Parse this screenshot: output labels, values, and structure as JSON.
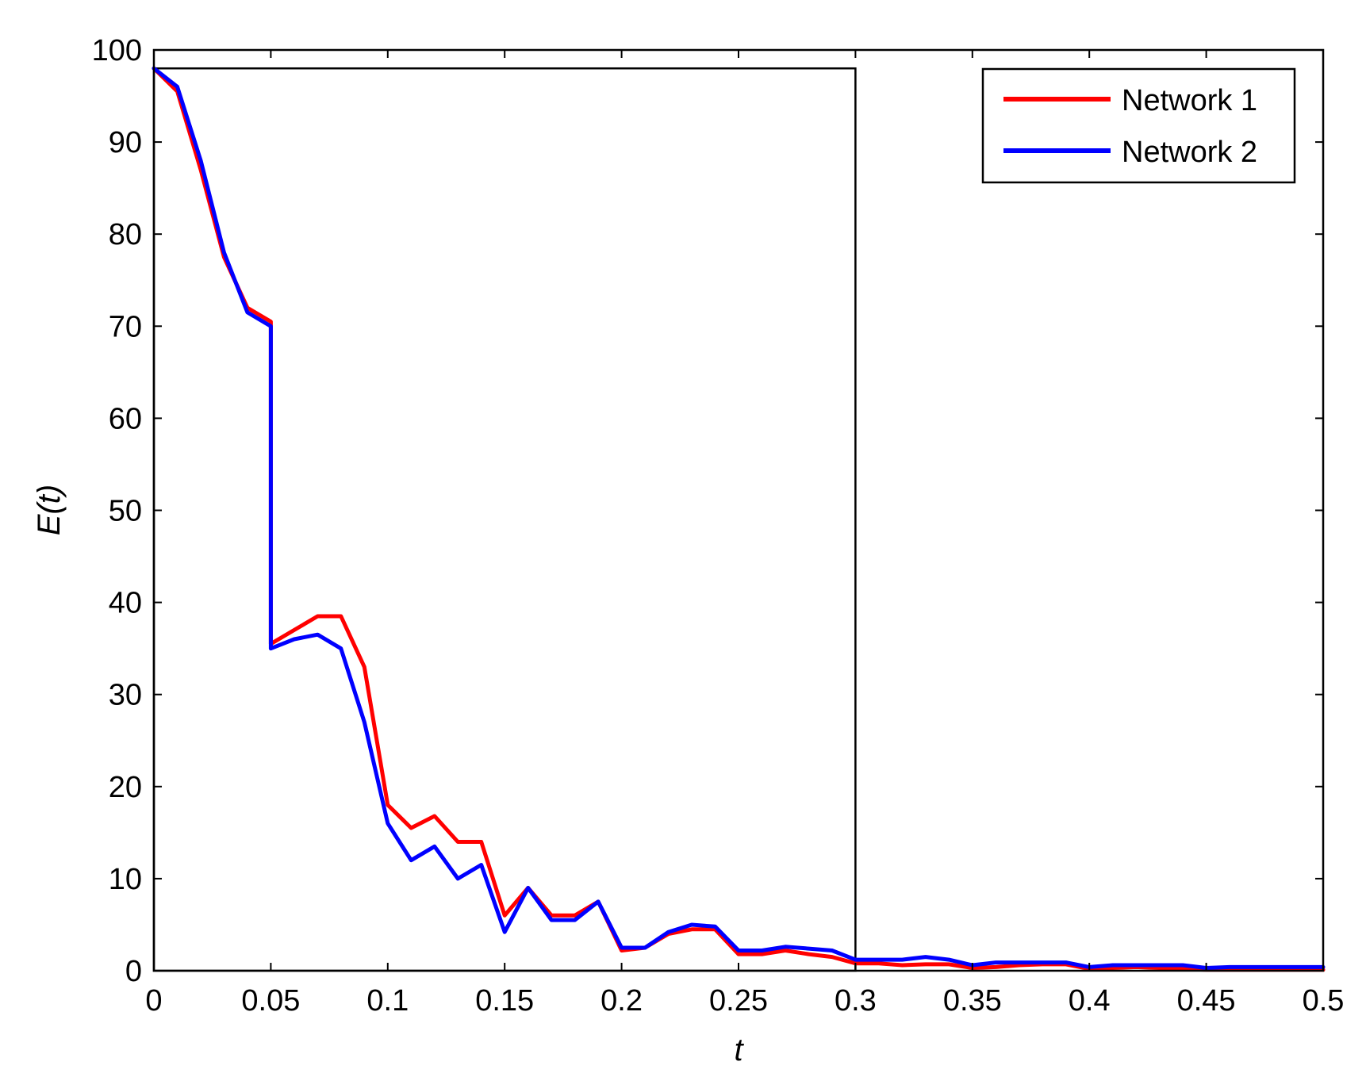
{
  "chart_data": {
    "type": "line",
    "xlabel": "t",
    "ylabel": "E(t)",
    "xlim": [
      0,
      0.5
    ],
    "ylim": [
      0,
      100
    ],
    "xticks": [
      0,
      0.05,
      0.1,
      0.15,
      0.2,
      0.25,
      0.3,
      0.35,
      0.4,
      0.45,
      0.5
    ],
    "xtick_labels": [
      "0",
      "0.05",
      "0.1",
      "0.15",
      "0.2",
      "0.25",
      "0.3",
      "0.35",
      "0.4",
      "0.45",
      "0.5"
    ],
    "yticks": [
      0,
      10,
      20,
      30,
      40,
      50,
      60,
      70,
      80,
      90,
      100
    ],
    "ytick_labels": [
      "0",
      "10",
      "20",
      "30",
      "40",
      "50",
      "60",
      "70",
      "80",
      "90",
      "100"
    ],
    "grid": false,
    "legend_position": "top-right",
    "colors": {
      "Network 1": "#ff0000",
      "Network 2": "#0000ff",
      "axes": "#000000"
    },
    "reference_box": {
      "x": [
        0,
        0.3
      ],
      "y": [
        0,
        98
      ]
    },
    "series": [
      {
        "name": "Network 1",
        "x": [
          0,
          0.01,
          0.02,
          0.03,
          0.04,
          0.05,
          0.05,
          0.06,
          0.07,
          0.08,
          0.09,
          0.1,
          0.11,
          0.12,
          0.13,
          0.14,
          0.15,
          0.16,
          0.17,
          0.18,
          0.19,
          0.2,
          0.21,
          0.22,
          0.23,
          0.24,
          0.25,
          0.26,
          0.27,
          0.28,
          0.29,
          0.3,
          0.31,
          0.32,
          0.33,
          0.34,
          0.35,
          0.36,
          0.37,
          0.38,
          0.39,
          0.4,
          0.41,
          0.42,
          0.43,
          0.44,
          0.45,
          0.46,
          0.47,
          0.48,
          0.49,
          0.5
        ],
        "y": [
          98,
          95.5,
          87,
          77.5,
          72,
          70.5,
          35.5,
          37,
          38.5,
          38.5,
          33,
          18,
          15.5,
          16.8,
          14,
          14,
          6,
          9,
          6,
          6,
          7.5,
          2.2,
          2.5,
          4,
          4.5,
          4.5,
          1.8,
          1.8,
          2.2,
          1.8,
          1.5,
          0.8,
          0.8,
          0.6,
          0.7,
          0.7,
          0.3,
          0.4,
          0.6,
          0.7,
          0.7,
          0.2,
          0.3,
          0.4,
          0.3,
          0.2,
          0.1,
          0.1,
          0.1,
          0.1,
          0.1,
          0.1
        ]
      },
      {
        "name": "Network 2",
        "x": [
          0,
          0.01,
          0.02,
          0.03,
          0.04,
          0.05,
          0.05,
          0.06,
          0.07,
          0.08,
          0.09,
          0.1,
          0.11,
          0.12,
          0.13,
          0.14,
          0.15,
          0.16,
          0.17,
          0.18,
          0.19,
          0.2,
          0.21,
          0.22,
          0.23,
          0.24,
          0.25,
          0.26,
          0.27,
          0.28,
          0.29,
          0.3,
          0.31,
          0.32,
          0.33,
          0.34,
          0.35,
          0.36,
          0.37,
          0.38,
          0.39,
          0.4,
          0.41,
          0.42,
          0.43,
          0.44,
          0.45,
          0.46,
          0.47,
          0.48,
          0.49,
          0.5
        ],
        "y": [
          98,
          96,
          88,
          78,
          71.5,
          70,
          35,
          36,
          36.5,
          35,
          27,
          16,
          12,
          13.5,
          10,
          11.5,
          4.2,
          9,
          5.5,
          5.5,
          7.5,
          2.5,
          2.5,
          4.2,
          5,
          4.8,
          2.2,
          2.2,
          2.6,
          2.4,
          2.2,
          1.2,
          1.2,
          1.2,
          1.5,
          1.2,
          0.6,
          0.9,
          0.9,
          0.9,
          0.9,
          0.4,
          0.6,
          0.6,
          0.6,
          0.6,
          0.3,
          0.4,
          0.4,
          0.4,
          0.4,
          0.4
        ]
      }
    ]
  }
}
